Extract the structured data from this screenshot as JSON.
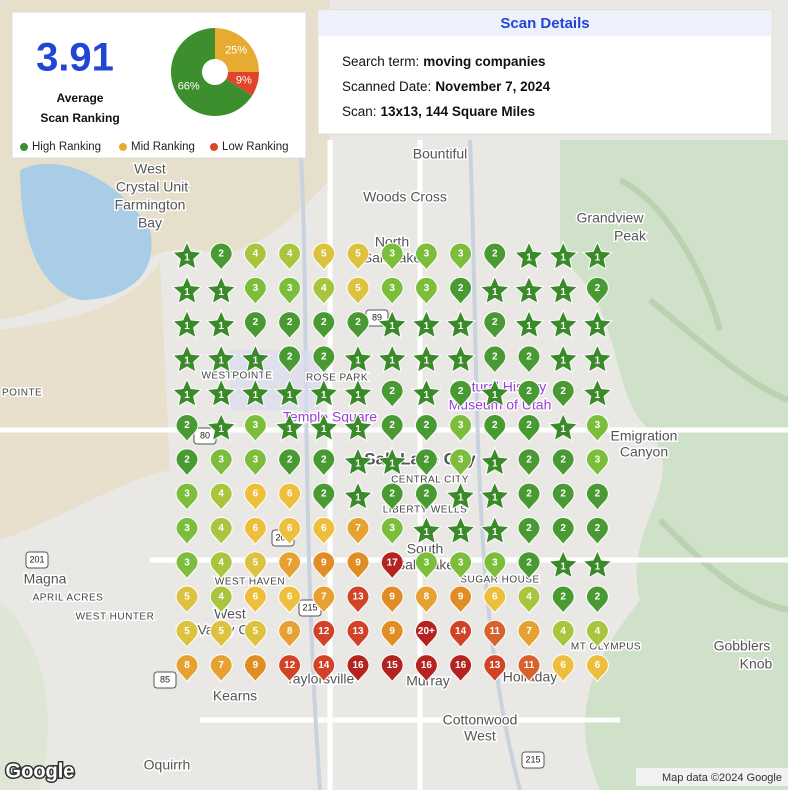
{
  "summary": {
    "score": "3.91",
    "score_caption": [
      "Average",
      "Scan Ranking"
    ],
    "donut": {
      "values": [
        66,
        25,
        9
      ],
      "value_labels": [
        "66%",
        "25%",
        "9%"
      ],
      "colors": [
        "#3c8f2c",
        "#e6ac32",
        "#e0452b"
      ],
      "legend": [
        "High Ranking",
        "Mid Ranking",
        "Low Ranking"
      ]
    }
  },
  "details": {
    "title": "Scan Details",
    "rows": [
      [
        "Search term:",
        "moving companies"
      ],
      [
        "Scanned Date:",
        "November 7, 2024"
      ],
      [
        "Scan:",
        "13x13, 144 Square Miles"
      ]
    ]
  },
  "grid": {
    "ranks": [
      [
        1,
        2,
        4,
        4,
        5,
        5,
        3,
        3,
        3,
        2,
        1,
        1,
        1
      ],
      [
        1,
        1,
        3,
        3,
        4,
        5,
        3,
        3,
        2,
        1,
        1,
        1,
        2
      ],
      [
        1,
        1,
        2,
        2,
        2,
        2,
        1,
        1,
        1,
        2,
        1,
        1,
        1
      ],
      [
        1,
        1,
        1,
        2,
        2,
        1,
        1,
        1,
        1,
        2,
        2,
        1,
        1
      ],
      [
        1,
        1,
        1,
        1,
        1,
        1,
        2,
        1,
        2,
        1,
        2,
        2,
        1
      ],
      [
        2,
        1,
        3,
        1,
        1,
        1,
        2,
        2,
        3,
        2,
        2,
        1,
        3
      ],
      [
        2,
        3,
        3,
        2,
        2,
        1,
        1,
        2,
        3,
        1,
        2,
        2,
        3
      ],
      [
        3,
        4,
        6,
        6,
        2,
        1,
        2,
        2,
        1,
        1,
        2,
        2,
        2
      ],
      [
        3,
        4,
        6,
        6,
        6,
        7,
        3,
        1,
        1,
        1,
        2,
        2,
        2
      ],
      [
        3,
        4,
        5,
        7,
        9,
        9,
        17,
        3,
        3,
        3,
        2,
        1,
        1
      ],
      [
        5,
        4,
        6,
        6,
        7,
        13,
        9,
        8,
        9,
        6,
        4,
        2,
        2
      ],
      [
        5,
        5,
        5,
        8,
        12,
        13,
        9,
        "20+",
        14,
        11,
        7,
        4,
        4
      ],
      [
        8,
        7,
        9,
        12,
        14,
        16,
        15,
        16,
        16,
        13,
        11,
        6,
        6
      ]
    ]
  },
  "map": {
    "labels": [
      "West",
      "Crystal Unit",
      "Farmington",
      "Bay",
      "Bountiful",
      "Woods Cross",
      "Grandview",
      "Peak",
      "North",
      "Salt Lake",
      "WESTPOINTE",
      "ROSE PARK",
      "POINTE",
      "Natural History",
      "Museum of Utah",
      "Temple Square",
      "Emigration",
      "Canyon",
      "Salt Lake City",
      "CENTRAL CITY",
      "LIBERTY WELLS",
      "South",
      "Salt Lake",
      "SUGAR HOUSE",
      "Magna",
      "WEST HAVEN",
      "APRIL ACRES",
      "WEST HUNTER",
      "West",
      "Valley City",
      "MT OLYMPUS",
      "Gobblers",
      "Knob",
      "Taylorsville",
      "Murray",
      "Holladay",
      "Kearns",
      "Cottonwood",
      "West",
      "Oquirrh"
    ],
    "shields": [
      "89",
      "80",
      "201",
      "201",
      "215",
      "85",
      "215"
    ]
  },
  "footer": {
    "logo": "Google",
    "attribution": "Map data ©2024 Google"
  }
}
